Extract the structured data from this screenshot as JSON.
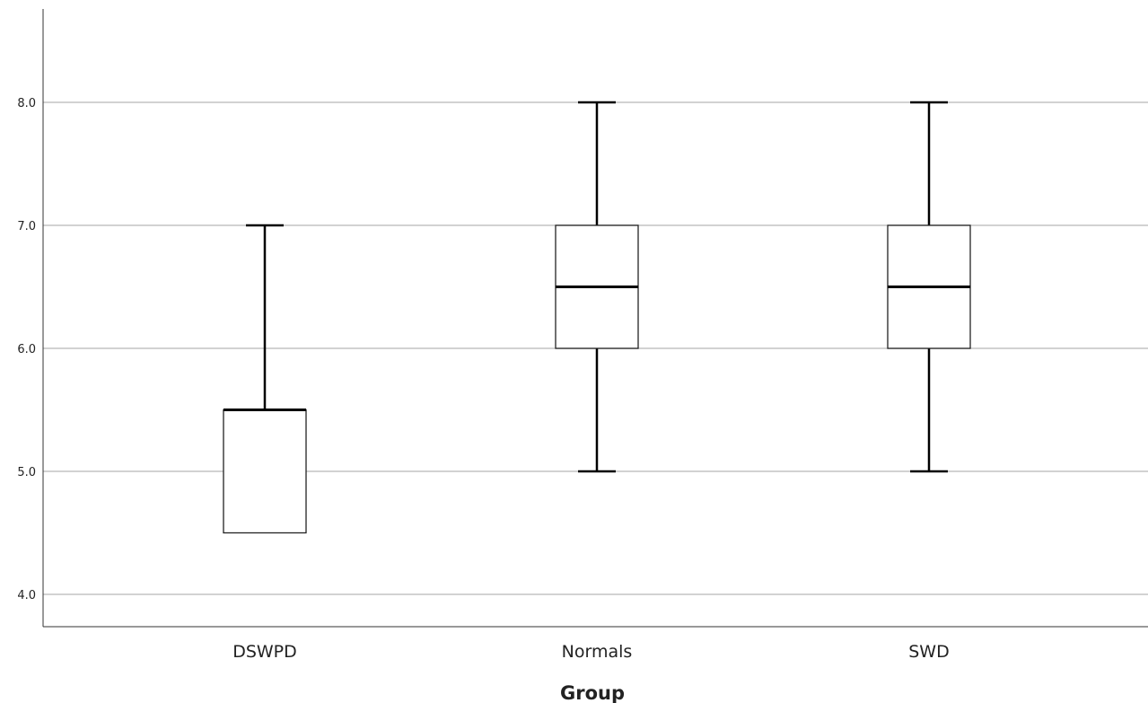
{
  "chart_data": {
    "type": "boxplot",
    "xlabel": "Group",
    "ylabel": "",
    "ylim": [
      3.75,
      8.75
    ],
    "yticks": [
      4.0,
      5.0,
      6.0,
      7.0,
      8.0
    ],
    "ytick_labels": [
      "4.0",
      "5.0",
      "6.0",
      "7.0",
      "8.0"
    ],
    "grid": true,
    "categories": [
      "DSWPD",
      "Normals",
      "SWD"
    ],
    "boxes": [
      {
        "category": "DSWPD",
        "whisker_low": 4.5,
        "q1": 4.5,
        "median": 5.5,
        "q3": 5.5,
        "whisker_high": 7.0
      },
      {
        "category": "Normals",
        "whisker_low": 5.0,
        "q1": 6.0,
        "median": 6.5,
        "q3": 7.0,
        "whisker_high": 8.0
      },
      {
        "category": "SWD",
        "whisker_low": 5.0,
        "q1": 6.0,
        "median": 6.5,
        "q3": 7.0,
        "whisker_high": 8.0
      }
    ]
  }
}
